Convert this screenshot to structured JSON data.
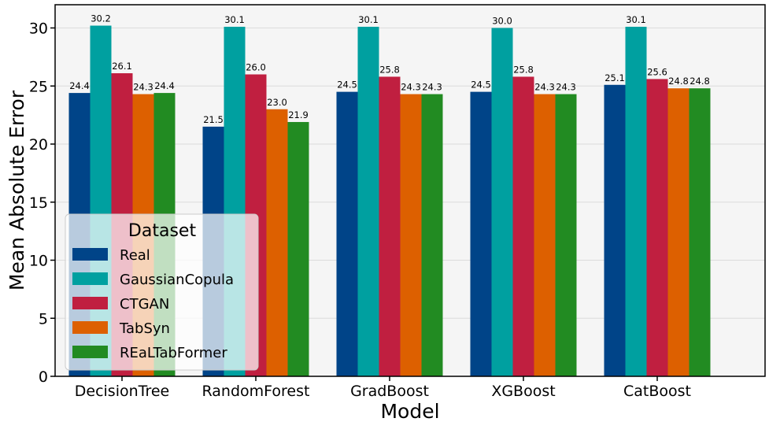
{
  "chart_data": {
    "type": "bar",
    "title": "",
    "xlabel": "Model",
    "ylabel": "Mean Absolute Error",
    "ylim": [
      0,
      32
    ],
    "yticks": [
      0,
      5,
      10,
      15,
      20,
      25,
      30
    ],
    "grid": true,
    "categories": [
      "DecisionTree",
      "RandomForest",
      "GradBoost",
      "XGBoost",
      "CatBoost"
    ],
    "series": [
      {
        "name": "Real",
        "color": "#004488",
        "values": [
          24.4,
          21.5,
          24.5,
          24.5,
          25.1
        ],
        "labels": [
          "24.4",
          "21.5",
          "24.5",
          "24.5",
          "25.1"
        ]
      },
      {
        "name": "GaussianCopula",
        "color": "#00A0A0",
        "values": [
          30.2,
          30.1,
          30.1,
          30.0,
          30.1
        ],
        "labels": [
          "30.2",
          "30.1",
          "30.1",
          "30.0",
          "30.1"
        ]
      },
      {
        "name": "CTGAN",
        "color": "#C01F40",
        "values": [
          26.1,
          26.0,
          25.8,
          25.8,
          25.6
        ],
        "labels": [
          "26.1",
          "26.0",
          "25.8",
          "25.8",
          "25.6"
        ]
      },
      {
        "name": "TabSyn",
        "color": "#DD6000",
        "values": [
          24.3,
          23.0,
          24.3,
          24.3,
          24.8
        ],
        "labels": [
          "24.3",
          "23.0",
          "24.3",
          "24.3",
          "24.8"
        ]
      },
      {
        "name": "REaLTabFormer",
        "color": "#228B22",
        "values": [
          24.4,
          21.9,
          24.3,
          24.3,
          24.8
        ],
        "labels": [
          "24.4",
          "21.9",
          "24.3",
          "24.3",
          "24.8"
        ]
      }
    ],
    "legend": {
      "title": "Dataset",
      "position": "lower-left"
    }
  }
}
